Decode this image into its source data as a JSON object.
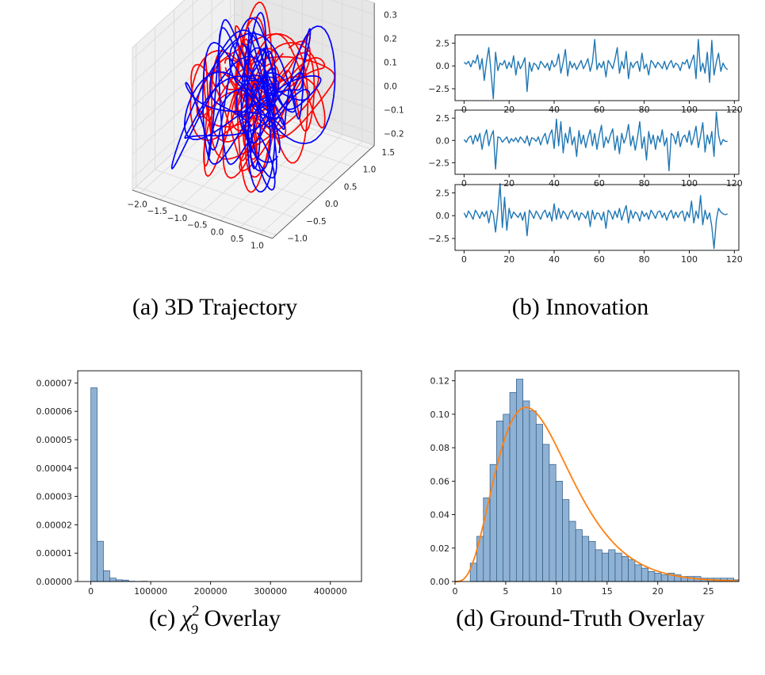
{
  "captions": {
    "a": "(a)  3D Trajectory",
    "b": "(b)  Innovation",
    "c_prefix": "(c)  ",
    "c_chi": "χ",
    "c_sup": "2",
    "c_sub": "9",
    "c_suffix": " Overlay",
    "d": "(d)  Ground-Truth Overlay"
  },
  "colors": {
    "trajectory_red": "#ff0000",
    "trajectory_blue": "#0000ff",
    "innovation_line": "#1f77b4",
    "hist_fill": "#8fb2d4",
    "hist_edge": "#2e5a84",
    "pdf_curve": "#ff7f0e",
    "pane_left": "#f0f0f0",
    "pane_right": "#e6e6e6",
    "pane_floor": "#f3f3f3"
  },
  "chart_data": [
    {
      "id": "a",
      "type": "line",
      "projection": "3d",
      "x_ticks": [
        "−2.0",
        "−1.5",
        "−1.0",
        "−0.5",
        "0.0",
        "0.5",
        "1.0"
      ],
      "y_ticks": [
        "−1.0",
        "−0.5",
        "0.0",
        "0.5",
        "1.0",
        "1.5"
      ],
      "z_ticks": [
        "−0.2",
        "−0.1",
        "0.0",
        "0.1",
        "0.2",
        "0.3"
      ],
      "xlim": [
        -2.2,
        1.3
      ],
      "ylim": [
        -1.1,
        1.6
      ],
      "zlim": [
        -0.25,
        0.35
      ],
      "series": [
        {
          "color": "red",
          "count": 4
        },
        {
          "color": "blue",
          "count": 4
        }
      ]
    },
    {
      "id": "b",
      "type": "line",
      "subplots": 3,
      "xlim": [
        -4,
        122
      ],
      "ylim": [
        -3.8,
        3.4
      ],
      "x_ticks": [
        "0",
        "20",
        "40",
        "60",
        "80",
        "100",
        "120"
      ],
      "x_tick_values": [
        0,
        20,
        40,
        60,
        80,
        100,
        120
      ],
      "y_ticks": [
        "2.5",
        "0.0",
        "−2.5"
      ],
      "y_tick_values": [
        2.5,
        0,
        -2.5
      ],
      "series": [
        {
          "x_range": [
            0,
            117
          ],
          "values": [
            0.4,
            0.2,
            0.5,
            -0.1,
            0.6,
            0.3,
            1.2,
            -0.4,
            0.8,
            -1.6,
            0.5,
            2.0,
            -0.8,
            -3.6,
            1.5,
            -0.5,
            0.3,
            0.1,
            0.6,
            -0.3,
            0.4,
            -0.2,
            1.1,
            -1.0,
            0.5,
            -0.3,
            0.2,
            0.9,
            -2.8,
            0.4,
            -0.6,
            0.3,
            0.1,
            -0.4,
            0.5,
            0.2,
            -0.2,
            0.3,
            -0.5,
            0.6,
            -0.1,
            0.2,
            1.3,
            -0.8,
            0.4,
            1.8,
            -1.1,
            0.5,
            -0.2,
            0.3,
            -0.4,
            0.1,
            0.6,
            -0.3,
            0.2,
            0.8,
            -0.6,
            0.4,
            2.9,
            -0.4,
            0.3,
            -0.2,
            0.5,
            -1.2,
            0.6,
            0.2,
            -0.3,
            0.7,
            2.0,
            -0.8,
            0.5,
            -0.3,
            1.6,
            -1.4,
            0.4,
            -0.2,
            0.3,
            0.5,
            -0.6,
            1.4,
            -0.3,
            0.2,
            -1.0,
            0.6,
            0.3,
            -0.2,
            0.4,
            0.1,
            -0.3,
            0.5,
            -0.4,
            0.2,
            0.6,
            -0.2,
            0.3,
            0.1,
            -0.5,
            0.4,
            0.2,
            0.7,
            -0.3,
            0.5,
            1.2,
            -1.4,
            2.9,
            -0.6,
            0.3,
            -0.8,
            1.5,
            -1.8,
            2.8,
            -1.0,
            0.4,
            1.4,
            -0.6,
            0.3,
            -0.2,
            -0.4
          ]
        },
        {
          "x_range": [
            0,
            117
          ],
          "values": [
            0.1,
            -0.2,
            0.3,
            0.5,
            -0.4,
            0.6,
            -0.1,
            0.8,
            -1.0,
            0.4,
            1.2,
            -0.6,
            0.5,
            1.1,
            -3.2,
            0.4,
            0.3,
            -0.2,
            0.1,
            0.4,
            -0.3,
            0.2,
            -0.1,
            0.3,
            -0.2,
            0.4,
            0.1,
            -0.3,
            0.5,
            -0.6,
            0.3,
            0.2,
            -0.1,
            0.4,
            -0.5,
            0.3,
            0.8,
            -0.4,
            0.6,
            1.2,
            -0.9,
            2.4,
            -0.6,
            2.1,
            -1.4,
            0.8,
            -0.3,
            1.5,
            -0.5,
            0.4,
            -1.8,
            1.1,
            -0.4,
            0.6,
            -0.8,
            0.3,
            1.2,
            -0.6,
            0.8,
            -1.0,
            0.5,
            1.7,
            -0.8,
            0.4,
            -0.3,
            0.6,
            1.3,
            -1.1,
            0.5,
            -1.5,
            0.8,
            -0.3,
            0.4,
            1.8,
            -0.6,
            0.5,
            -1.1,
            0.3,
            2.1,
            -0.9,
            0.4,
            -2.2,
            1.0,
            -0.4,
            0.6,
            -1.0,
            0.5,
            -0.2,
            1.2,
            -0.6,
            0.3,
            -3.4,
            0.8,
            0.5,
            -0.4,
            1.0,
            -0.7,
            0.3,
            0.6,
            -0.2,
            1.1,
            -0.5,
            0.4,
            1.6,
            -0.8,
            0.5,
            2.0,
            -1.3,
            0.6,
            -0.4,
            1.0,
            -1.8,
            3.2,
            0.6,
            -0.5,
            0.1,
            -0.1,
            -0.1
          ]
        },
        {
          "x_range": [
            0,
            117
          ],
          "values": [
            0.3,
            -0.2,
            0.5,
            0.1,
            -0.4,
            0.6,
            0.2,
            -0.3,
            0.4,
            -0.1,
            0.5,
            -0.8,
            0.6,
            0.2,
            -1.8,
            0.5,
            3.5,
            -1.3,
            2.0,
            -1.6,
            0.8,
            -0.3,
            0.4,
            0.1,
            -0.2,
            0.3,
            -0.5,
            0.4,
            -2.2,
            0.6,
            0.2,
            -0.3,
            0.5,
            0.1,
            -0.4,
            0.3,
            0.6,
            -0.2,
            0.4,
            -0.6,
            1.3,
            -0.4,
            0.8,
            -0.3,
            0.5,
            0.2,
            -0.4,
            0.3,
            0.6,
            -0.2,
            0.4,
            -0.5,
            0.3,
            0.1,
            -0.3,
            0.5,
            -1.2,
            0.6,
            -0.4,
            0.3,
            0.2,
            -0.5,
            0.4,
            -1.4,
            0.6,
            0.3,
            -0.4,
            0.5,
            -0.2,
            0.8,
            -0.5,
            0.4,
            1.1,
            -0.8,
            0.6,
            -0.3,
            0.4,
            0.2,
            -0.6,
            0.5,
            -0.1,
            0.3,
            -0.4,
            0.6,
            0.2,
            -0.3,
            0.4,
            0.5,
            -0.2,
            0.3,
            -0.5,
            0.2,
            0.6,
            -0.3,
            0.4,
            -0.2,
            0.3,
            0.5,
            -0.6,
            0.4,
            -0.2,
            1.6,
            -0.8,
            0.5,
            -0.3,
            2.2,
            -1.0,
            0.6,
            -0.4,
            0.3,
            -1.2,
            -3.6,
            -0.5,
            0.8,
            0.4,
            0.2,
            0.1,
            0.2
          ]
        }
      ]
    },
    {
      "id": "c",
      "type": "bar",
      "histogram": true,
      "xlim": [
        -22000,
        452000
      ],
      "ylim": [
        0,
        7.43e-05
      ],
      "x_ticks": [
        "0",
        "100000",
        "200000",
        "300000",
        "400000"
      ],
      "x_tick_values": [
        0,
        100000,
        200000,
        300000,
        400000
      ],
      "y_ticks": [
        "0.00000",
        "0.00001",
        "0.00002",
        "0.00003",
        "0.00004",
        "0.00005",
        "0.00006",
        "0.00007"
      ],
      "y_tick_values": [
        0,
        1e-05,
        2e-05,
        3e-05,
        4e-05,
        5e-05,
        6e-05,
        7e-05
      ],
      "bin_start": 0,
      "bin_width": 10500,
      "values": [
        6.83e-05,
        1.42e-05,
        3.8e-06,
        1.2e-06,
        6e-07,
        5e-07,
        1e-07,
        5e-08,
        1e-07
      ]
    },
    {
      "id": "d",
      "type": "bar",
      "histogram": true,
      "xlim": [
        0,
        28
      ],
      "ylim": [
        0,
        0.126
      ],
      "x_ticks": [
        "0",
        "5",
        "10",
        "15",
        "20",
        "25"
      ],
      "x_tick_values": [
        0,
        5,
        10,
        15,
        20,
        25
      ],
      "y_ticks": [
        "0.00",
        "0.02",
        "0.04",
        "0.06",
        "0.08",
        "0.10",
        "0.12"
      ],
      "y_tick_values": [
        0,
        0.02,
        0.04,
        0.06,
        0.08,
        0.1,
        0.12
      ],
      "bin_start": 1.5,
      "bin_width": 0.65,
      "values": [
        0.011,
        0.027,
        0.05,
        0.07,
        0.096,
        0.1,
        0.113,
        0.121,
        0.108,
        0.102,
        0.094,
        0.082,
        0.07,
        0.06,
        0.049,
        0.036,
        0.031,
        0.027,
        0.024,
        0.019,
        0.017,
        0.019,
        0.017,
        0.015,
        0.013,
        0.01,
        0.008,
        0.006,
        0.005,
        0.004,
        0.005,
        0.004,
        0.003,
        0.003,
        0.003,
        0.002,
        0.002,
        0.002,
        0.002,
        0.002,
        0.001
      ],
      "pdf_overlay": {
        "k": 9,
        "x_range": [
          0,
          28
        ]
      }
    }
  ]
}
